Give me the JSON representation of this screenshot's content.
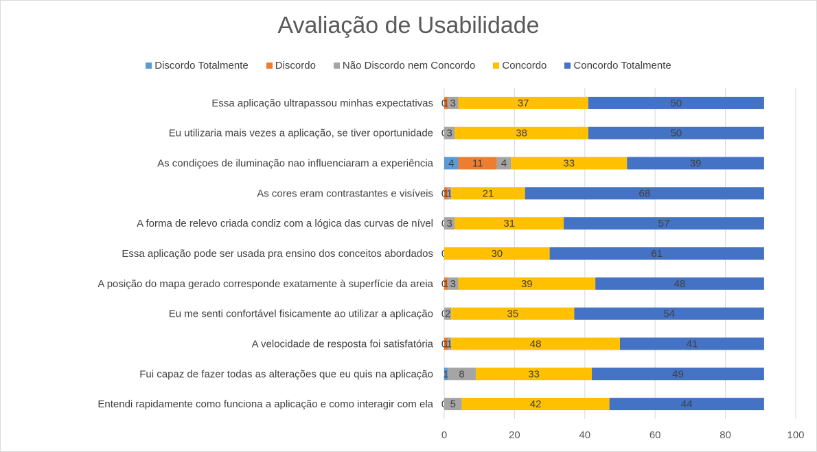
{
  "chart_data": {
    "type": "bar",
    "orientation": "horizontal",
    "stacked": true,
    "title": "Avaliação de Usabilidade",
    "legend_position": "top",
    "grid": true,
    "xlim": [
      0,
      100
    ],
    "xticks": [
      0,
      20,
      40,
      60,
      80,
      100
    ],
    "categories": [
      "Essa aplicação ultrapassou minhas expectativas",
      "Eu utilizaria mais vezes a aplicação, se tiver oportunidade",
      "As condiçoes de iluminação nao  influenciaram a experiência",
      "As cores eram contrastantes e visíveis",
      "A forma de relevo criada condiz com a lógica das curvas de nível",
      "Essa aplicação pode ser usada pra ensino dos conceitos abordados",
      "A posição do mapa gerado corresponde exatamente à superfície da areia",
      "Eu me senti confortável fisicamente ao utilizar a aplicação",
      "A velocidade de resposta foi satisfatória",
      "Fui capaz de fazer todas as alterações que eu quis na aplicação",
      "Entendi rapidamente como funciona a aplicação e como interagir com ela"
    ],
    "series": [
      {
        "name": "Discordo Totalmente",
        "color": "#5b9bd5",
        "values": [
          0,
          0,
          4,
          0,
          0,
          0,
          0,
          0,
          0,
          1,
          0
        ]
      },
      {
        "name": "Discordo",
        "color": "#ed7d31",
        "values": [
          1,
          0,
          11,
          1,
          0,
          0,
          1,
          0,
          1,
          0,
          0
        ]
      },
      {
        "name": "Não Discordo nem Concordo",
        "color": "#a5a5a5",
        "values": [
          3,
          3,
          4,
          1,
          3,
          0,
          3,
          2,
          1,
          8,
          5
        ]
      },
      {
        "name": "Concordo",
        "color": "#ffc000",
        "values": [
          37,
          38,
          33,
          21,
          31,
          30,
          39,
          35,
          48,
          33,
          42
        ]
      },
      {
        "name": "Concordo Totalmente",
        "color": "#4472c4",
        "values": [
          50,
          50,
          39,
          68,
          57,
          61,
          48,
          54,
          41,
          49,
          44
        ]
      }
    ]
  }
}
